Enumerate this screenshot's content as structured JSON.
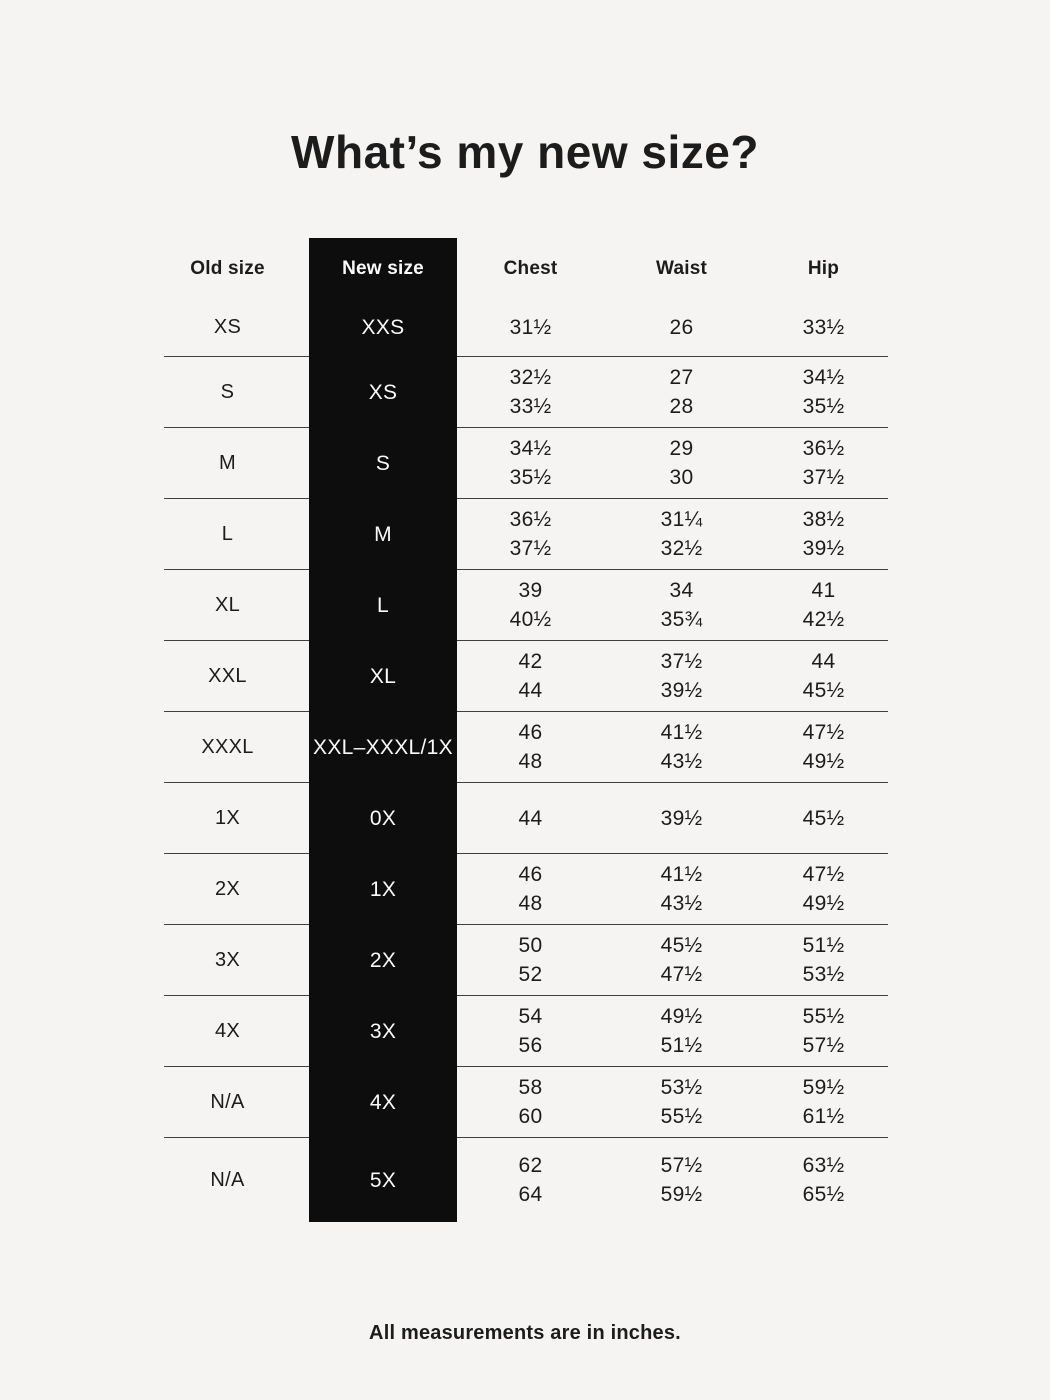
{
  "title": "What’s my new size?",
  "footnote": "All measurements are in inches.",
  "colors": {
    "background": "#f5f4f2",
    "highlight_column_bg": "#0d0d0d",
    "highlight_column_text": "#fafafa",
    "text": "#1c1c1c",
    "divider": "#3f3f3f"
  },
  "chart_data": {
    "type": "table",
    "title": "What’s my new size?",
    "note": "All measurements are in inches.",
    "columns": [
      "Old size",
      "New size",
      "Chest",
      "Waist",
      "Hip"
    ],
    "highlighted_column": "New size",
    "rows": [
      {
        "old": "XS",
        "new": "XXS",
        "chest": [
          "31½"
        ],
        "waist": [
          "26"
        ],
        "hip": [
          "33½"
        ]
      },
      {
        "old": "S",
        "new": "XS",
        "chest": [
          "32½",
          "33½"
        ],
        "waist": [
          "27",
          "28"
        ],
        "hip": [
          "34½",
          "35½"
        ]
      },
      {
        "old": "M",
        "new": "S",
        "chest": [
          "34½",
          "35½"
        ],
        "waist": [
          "29",
          "30"
        ],
        "hip": [
          "36½",
          "37½"
        ]
      },
      {
        "old": "L",
        "new": "M",
        "chest": [
          "36½",
          "37½"
        ],
        "waist": [
          "31¼",
          "32½"
        ],
        "hip": [
          "38½",
          "39½"
        ]
      },
      {
        "old": "XL",
        "new": "L",
        "chest": [
          "39",
          "40½"
        ],
        "waist": [
          "34",
          "35¾"
        ],
        "hip": [
          "41",
          "42½"
        ]
      },
      {
        "old": "XXL",
        "new": "XL",
        "chest": [
          "42",
          "44"
        ],
        "waist": [
          "37½",
          "39½"
        ],
        "hip": [
          "44",
          "45½"
        ]
      },
      {
        "old": "XXXL",
        "new": "XXL–XXXL/1X",
        "chest": [
          "46",
          "48"
        ],
        "waist": [
          "41½",
          "43½"
        ],
        "hip": [
          "47½",
          "49½"
        ]
      },
      {
        "old": "1X",
        "new": "0X",
        "chest": [
          "44"
        ],
        "waist": [
          "39½"
        ],
        "hip": [
          "45½"
        ]
      },
      {
        "old": "2X",
        "new": "1X",
        "chest": [
          "46",
          "48"
        ],
        "waist": [
          "41½",
          "43½"
        ],
        "hip": [
          "47½",
          "49½"
        ]
      },
      {
        "old": "3X",
        "new": "2X",
        "chest": [
          "50",
          "52"
        ],
        "waist": [
          "45½",
          "47½"
        ],
        "hip": [
          "51½",
          "53½"
        ]
      },
      {
        "old": "4X",
        "new": "3X",
        "chest": [
          "54",
          "56"
        ],
        "waist": [
          "49½",
          "51½"
        ],
        "hip": [
          "55½",
          "57½"
        ]
      },
      {
        "old": "N/A",
        "new": "4X",
        "chest": [
          "58",
          "60"
        ],
        "waist": [
          "53½",
          "55½"
        ],
        "hip": [
          "59½",
          "61½"
        ]
      },
      {
        "old": "N/A",
        "new": "5X",
        "chest": [
          "62",
          "64"
        ],
        "waist": [
          "57½",
          "59½"
        ],
        "hip": [
          "63½",
          "65½"
        ]
      }
    ]
  }
}
